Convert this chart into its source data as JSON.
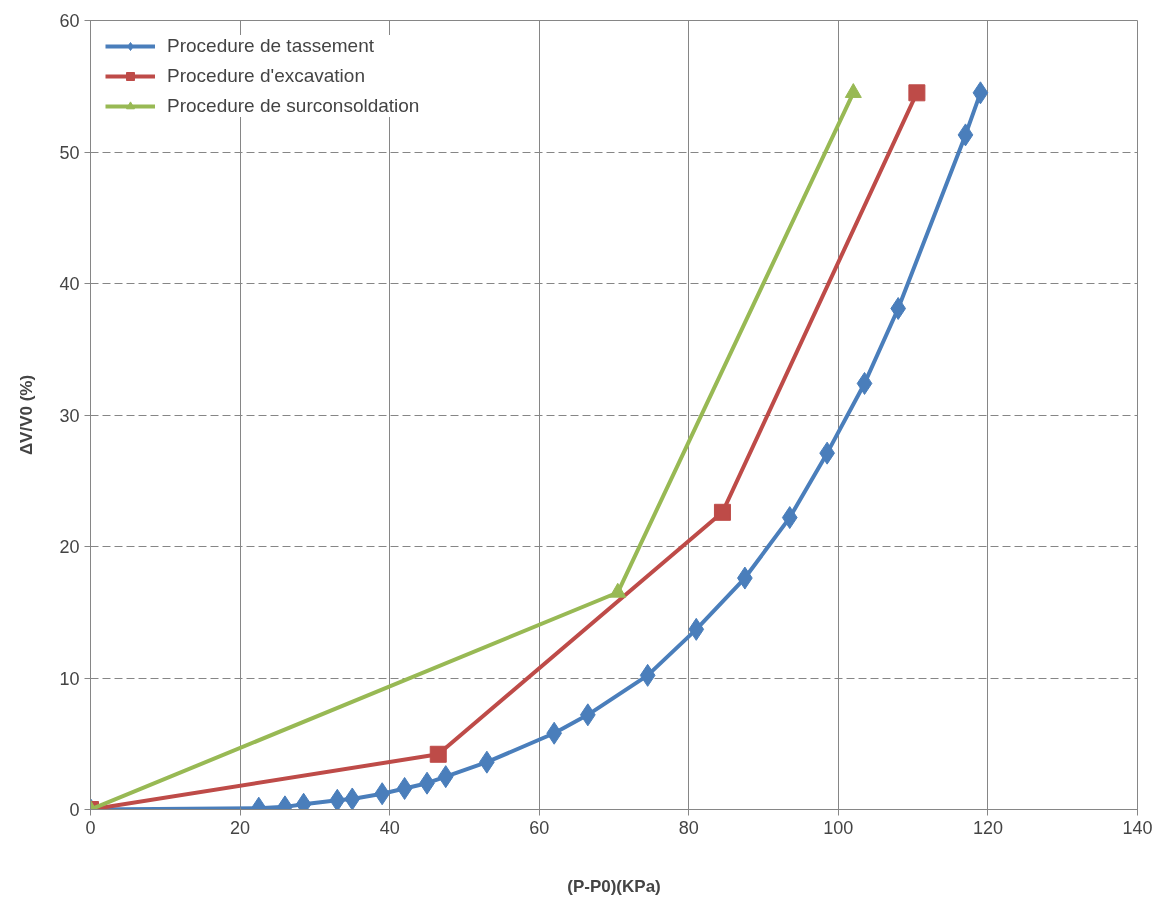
{
  "chart_data": {
    "type": "line",
    "xlabel": "(P-P0)(KPa)",
    "ylabel": "ΔV/V0 (%)",
    "xlim": [
      0,
      140
    ],
    "xticks": [
      0,
      20,
      40,
      60,
      80,
      100,
      120,
      140
    ],
    "ylim": [
      0,
      60
    ],
    "yticks": [
      0,
      10,
      20,
      30,
      40,
      50,
      60
    ],
    "grid": true,
    "legend": "top left",
    "line_style": "solid",
    "series": [
      {
        "name": "Procedure de tassement",
        "color": "#4a7ebb",
        "marker": "diamond",
        "x": [
          0,
          22.5,
          26,
          28.5,
          33,
          35,
          39,
          42,
          45,
          47.5,
          53,
          62,
          66.5,
          74.5,
          81,
          87.5,
          93.5,
          98.5,
          103.5,
          108,
          117,
          119
        ],
        "values": [
          0,
          0.1,
          0.2,
          0.4,
          0.7,
          0.8,
          1.2,
          1.6,
          2.0,
          2.5,
          3.6,
          5.8,
          7.2,
          10.2,
          13.7,
          17.6,
          22.2,
          27.1,
          32.4,
          38.1,
          51.3,
          54.5
        ]
      },
      {
        "name": "Procedure d'excavation",
        "color": "#be4b48",
        "marker": "square",
        "x": [
          0,
          46.5,
          84.5,
          110.5
        ],
        "values": [
          0,
          4.2,
          22.6,
          54.5
        ]
      },
      {
        "name": "Procedure de surconsoldation",
        "color": "#98b954",
        "marker": "triangle",
        "x": [
          0,
          70.5,
          102
        ],
        "values": [
          0,
          16.5,
          54.5
        ]
      }
    ]
  }
}
